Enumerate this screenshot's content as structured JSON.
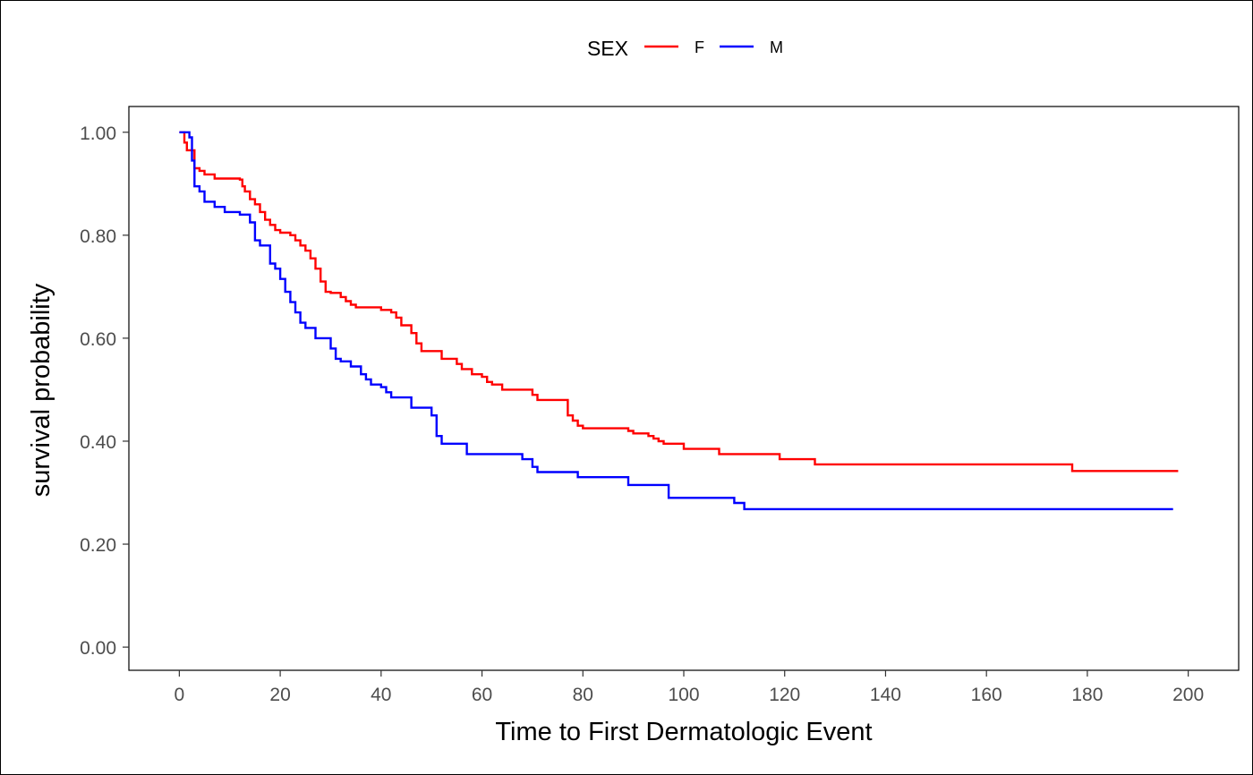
{
  "chart_data": {
    "type": "line",
    "subtype": "kaplan-meier-step",
    "xlabel": "Time to First Dermatologic Event",
    "ylabel": "survival probability",
    "xlim": [
      -10,
      210
    ],
    "ylim": [
      -0.045,
      1.05
    ],
    "x_ticks": [
      0,
      20,
      40,
      60,
      80,
      100,
      120,
      140,
      160,
      180,
      200
    ],
    "x_tick_labels": [
      "0",
      "20",
      "40",
      "60",
      "80",
      "100",
      "120",
      "140",
      "160",
      "180",
      "200"
    ],
    "y_ticks": [
      0,
      0.2,
      0.4,
      0.6,
      0.8,
      1.0
    ],
    "y_tick_labels": [
      "0.00",
      "0.20",
      "0.40",
      "0.60",
      "0.80",
      "1.00"
    ],
    "grid": false,
    "legend": {
      "title": "SEX",
      "position": "top"
    },
    "series": [
      {
        "name": "F",
        "color": "#ff0000",
        "x": [
          0,
          1,
          1.5,
          3,
          4,
          5,
          7,
          12,
          12.5,
          13,
          14,
          15,
          16,
          17,
          18,
          19,
          20,
          22,
          23,
          24,
          25,
          26,
          27,
          28,
          29,
          30,
          32,
          33,
          34,
          35,
          40,
          42,
          43,
          44,
          46,
          47,
          48,
          52,
          55,
          56,
          58,
          60,
          61,
          62,
          64,
          70,
          71,
          77,
          78,
          79,
          80,
          89,
          90,
          93,
          94,
          95,
          96,
          100,
          107,
          119,
          126,
          177,
          198
        ],
        "y": [
          1.0,
          0.98,
          0.965,
          0.93,
          0.925,
          0.918,
          0.91,
          0.908,
          0.895,
          0.885,
          0.87,
          0.86,
          0.845,
          0.83,
          0.82,
          0.81,
          0.805,
          0.8,
          0.79,
          0.78,
          0.77,
          0.755,
          0.735,
          0.71,
          0.69,
          0.688,
          0.68,
          0.672,
          0.665,
          0.66,
          0.655,
          0.65,
          0.64,
          0.625,
          0.61,
          0.59,
          0.575,
          0.56,
          0.55,
          0.54,
          0.53,
          0.525,
          0.515,
          0.51,
          0.5,
          0.49,
          0.48,
          0.45,
          0.44,
          0.43,
          0.425,
          0.42,
          0.415,
          0.41,
          0.405,
          0.4,
          0.395,
          0.385,
          0.375,
          0.365,
          0.355,
          0.342,
          0.342
        ]
      },
      {
        "name": "M",
        "color": "#0000ff",
        "x": [
          0,
          2,
          2.5,
          3,
          4,
          5,
          7,
          9,
          12,
          14,
          15,
          16,
          18,
          19,
          20,
          21,
          22,
          23,
          24,
          25,
          27,
          30,
          31,
          32,
          34,
          36,
          37,
          38,
          40,
          41,
          42,
          46,
          50,
          51,
          52,
          57,
          68,
          70,
          71,
          79,
          89,
          97,
          110,
          112,
          197
        ],
        "y": [
          1.0,
          0.99,
          0.945,
          0.895,
          0.885,
          0.865,
          0.855,
          0.845,
          0.84,
          0.825,
          0.79,
          0.78,
          0.745,
          0.735,
          0.715,
          0.69,
          0.67,
          0.65,
          0.63,
          0.62,
          0.6,
          0.58,
          0.56,
          0.555,
          0.545,
          0.53,
          0.52,
          0.51,
          0.505,
          0.495,
          0.485,
          0.465,
          0.45,
          0.41,
          0.395,
          0.375,
          0.365,
          0.35,
          0.34,
          0.33,
          0.315,
          0.29,
          0.28,
          0.268,
          0.268
        ]
      }
    ]
  }
}
